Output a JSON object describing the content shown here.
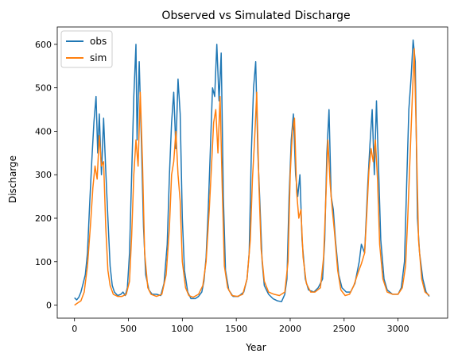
{
  "chart_data": {
    "type": "line",
    "title": "Observed vs Simulated Discharge",
    "xlabel": "Year",
    "ylabel": "Discharge",
    "xlim": [
      -160,
      3460
    ],
    "ylim": [
      -30,
      640
    ],
    "x_ticks": [
      0,
      500,
      1000,
      1500,
      2000,
      2500,
      3000
    ],
    "y_ticks": [
      0,
      100,
      200,
      300,
      400,
      500,
      600
    ],
    "grid": false,
    "legend_position": "top-left",
    "series": [
      {
        "name": "obs",
        "color": "#1f77b4",
        "points": [
          [
            0,
            17
          ],
          [
            20,
            12
          ],
          [
            40,
            18
          ],
          [
            60,
            30
          ],
          [
            80,
            50
          ],
          [
            100,
            70
          ],
          [
            120,
            120
          ],
          [
            140,
            230
          ],
          [
            160,
            330
          ],
          [
            180,
            420
          ],
          [
            200,
            480
          ],
          [
            215,
            350
          ],
          [
            230,
            440
          ],
          [
            250,
            300
          ],
          [
            270,
            430
          ],
          [
            290,
            310
          ],
          [
            310,
            200
          ],
          [
            330,
            90
          ],
          [
            350,
            45
          ],
          [
            370,
            30
          ],
          [
            400,
            22
          ],
          [
            430,
            25
          ],
          [
            450,
            30
          ],
          [
            470,
            22
          ],
          [
            490,
            40
          ],
          [
            510,
            120
          ],
          [
            530,
            300
          ],
          [
            550,
            480
          ],
          [
            570,
            600
          ],
          [
            580,
            380
          ],
          [
            600,
            560
          ],
          [
            620,
            380
          ],
          [
            640,
            180
          ],
          [
            660,
            70
          ],
          [
            690,
            35
          ],
          [
            720,
            25
          ],
          [
            760,
            25
          ],
          [
            800,
            22
          ],
          [
            830,
            50
          ],
          [
            860,
            140
          ],
          [
            880,
            300
          ],
          [
            900,
            420
          ],
          [
            920,
            490
          ],
          [
            940,
            360
          ],
          [
            960,
            520
          ],
          [
            980,
            440
          ],
          [
            1000,
            200
          ],
          [
            1020,
            80
          ],
          [
            1050,
            30
          ],
          [
            1080,
            15
          ],
          [
            1120,
            15
          ],
          [
            1150,
            20
          ],
          [
            1180,
            30
          ],
          [
            1200,
            55
          ],
          [
            1220,
            110
          ],
          [
            1240,
            220
          ],
          [
            1260,
            360
          ],
          [
            1280,
            500
          ],
          [
            1300,
            480
          ],
          [
            1320,
            600
          ],
          [
            1340,
            470
          ],
          [
            1360,
            580
          ],
          [
            1380,
            250
          ],
          [
            1400,
            80
          ],
          [
            1430,
            35
          ],
          [
            1470,
            20
          ],
          [
            1520,
            20
          ],
          [
            1570,
            30
          ],
          [
            1600,
            60
          ],
          [
            1620,
            120
          ],
          [
            1640,
            350
          ],
          [
            1660,
            500
          ],
          [
            1680,
            560
          ],
          [
            1700,
            350
          ],
          [
            1720,
            230
          ],
          [
            1740,
            100
          ],
          [
            1760,
            45
          ],
          [
            1800,
            25
          ],
          [
            1840,
            15
          ],
          [
            1880,
            10
          ],
          [
            1920,
            8
          ],
          [
            1950,
            25
          ],
          [
            1970,
            60
          ],
          [
            1990,
            250
          ],
          [
            2010,
            380
          ],
          [
            2030,
            440
          ],
          [
            2050,
            300
          ],
          [
            2070,
            250
          ],
          [
            2090,
            300
          ],
          [
            2110,
            150
          ],
          [
            2140,
            60
          ],
          [
            2170,
            35
          ],
          [
            2220,
            30
          ],
          [
            2260,
            40
          ],
          [
            2300,
            60
          ],
          [
            2320,
            150
          ],
          [
            2340,
            350
          ],
          [
            2360,
            450
          ],
          [
            2380,
            250
          ],
          [
            2400,
            220
          ],
          [
            2420,
            150
          ],
          [
            2450,
            70
          ],
          [
            2480,
            40
          ],
          [
            2520,
            30
          ],
          [
            2560,
            30
          ],
          [
            2600,
            50
          ],
          [
            2640,
            100
          ],
          [
            2660,
            140
          ],
          [
            2690,
            120
          ],
          [
            2720,
            280
          ],
          [
            2740,
            370
          ],
          [
            2760,
            450
          ],
          [
            2780,
            300
          ],
          [
            2800,
            470
          ],
          [
            2820,
            310
          ],
          [
            2840,
            150
          ],
          [
            2870,
            60
          ],
          [
            2900,
            35
          ],
          [
            2950,
            25
          ],
          [
            3000,
            25
          ],
          [
            3030,
            40
          ],
          [
            3060,
            100
          ],
          [
            3080,
            280
          ],
          [
            3100,
            450
          ],
          [
            3120,
            520
          ],
          [
            3140,
            610
          ],
          [
            3160,
            560
          ],
          [
            3180,
            200
          ],
          [
            3200,
            120
          ],
          [
            3230,
            60
          ],
          [
            3260,
            30
          ],
          [
            3290,
            20
          ]
        ]
      },
      {
        "name": "sim",
        "color": "#ff7f0e",
        "points": [
          [
            0,
            0
          ],
          [
            30,
            5
          ],
          [
            60,
            10
          ],
          [
            90,
            30
          ],
          [
            120,
            90
          ],
          [
            150,
            190
          ],
          [
            170,
            270
          ],
          [
            190,
            320
          ],
          [
            210,
            290
          ],
          [
            230,
            390
          ],
          [
            250,
            320
          ],
          [
            270,
            330
          ],
          [
            290,
            180
          ],
          [
            310,
            80
          ],
          [
            330,
            45
          ],
          [
            360,
            25
          ],
          [
            400,
            20
          ],
          [
            440,
            20
          ],
          [
            480,
            25
          ],
          [
            510,
            55
          ],
          [
            530,
            160
          ],
          [
            550,
            300
          ],
          [
            570,
            380
          ],
          [
            590,
            320
          ],
          [
            610,
            490
          ],
          [
            630,
            330
          ],
          [
            650,
            120
          ],
          [
            680,
            40
          ],
          [
            710,
            25
          ],
          [
            760,
            20
          ],
          [
            810,
            25
          ],
          [
            850,
            70
          ],
          [
            880,
            180
          ],
          [
            900,
            300
          ],
          [
            920,
            330
          ],
          [
            940,
            400
          ],
          [
            960,
            300
          ],
          [
            980,
            240
          ],
          [
            1000,
            100
          ],
          [
            1030,
            40
          ],
          [
            1060,
            22
          ],
          [
            1100,
            18
          ],
          [
            1150,
            25
          ],
          [
            1190,
            45
          ],
          [
            1220,
            100
          ],
          [
            1250,
            220
          ],
          [
            1270,
            320
          ],
          [
            1290,
            420
          ],
          [
            1310,
            450
          ],
          [
            1330,
            350
          ],
          [
            1350,
            480
          ],
          [
            1370,
            270
          ],
          [
            1390,
            90
          ],
          [
            1420,
            40
          ],
          [
            1460,
            22
          ],
          [
            1510,
            20
          ],
          [
            1560,
            25
          ],
          [
            1600,
            60
          ],
          [
            1630,
            150
          ],
          [
            1650,
            290
          ],
          [
            1670,
            380
          ],
          [
            1690,
            490
          ],
          [
            1710,
            280
          ],
          [
            1730,
            130
          ],
          [
            1760,
            55
          ],
          [
            1800,
            30
          ],
          [
            1850,
            25
          ],
          [
            1900,
            22
          ],
          [
            1950,
            30
          ],
          [
            1980,
            100
          ],
          [
            2000,
            300
          ],
          [
            2020,
            400
          ],
          [
            2040,
            430
          ],
          [
            2060,
            260
          ],
          [
            2080,
            200
          ],
          [
            2100,
            220
          ],
          [
            2120,
            110
          ],
          [
            2150,
            50
          ],
          [
            2190,
            30
          ],
          [
            2230,
            30
          ],
          [
            2280,
            40
          ],
          [
            2310,
            110
          ],
          [
            2330,
            240
          ],
          [
            2350,
            380
          ],
          [
            2370,
            280
          ],
          [
            2390,
            220
          ],
          [
            2410,
            170
          ],
          [
            2440,
            80
          ],
          [
            2470,
            35
          ],
          [
            2510,
            22
          ],
          [
            2550,
            25
          ],
          [
            2590,
            45
          ],
          [
            2630,
            75
          ],
          [
            2660,
            95
          ],
          [
            2690,
            120
          ],
          [
            2710,
            210
          ],
          [
            2730,
            310
          ],
          [
            2750,
            360
          ],
          [
            2770,
            330
          ],
          [
            2790,
            380
          ],
          [
            2810,
            290
          ],
          [
            2830,
            140
          ],
          [
            2860,
            60
          ],
          [
            2900,
            30
          ],
          [
            2950,
            25
          ],
          [
            3000,
            25
          ],
          [
            3040,
            40
          ],
          [
            3070,
            90
          ],
          [
            3090,
            200
          ],
          [
            3110,
            330
          ],
          [
            3130,
            460
          ],
          [
            3150,
            590
          ],
          [
            3170,
            380
          ],
          [
            3190,
            150
          ],
          [
            3220,
            60
          ],
          [
            3250,
            30
          ],
          [
            3290,
            22
          ]
        ]
      }
    ]
  }
}
